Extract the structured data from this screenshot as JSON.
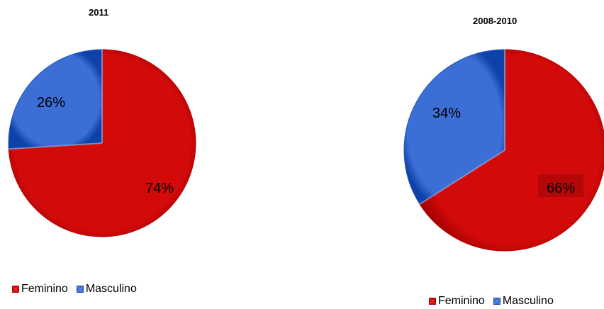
{
  "chart_data": [
    {
      "type": "pie",
      "title": "2011",
      "categories": [
        "Feminino",
        "Masculino"
      ],
      "values": [
        74,
        26
      ],
      "value_labels": [
        "74%",
        "26%"
      ],
      "colors": [
        "#D20A0A",
        "#3C6FD6"
      ],
      "legend_position": "bottom-left"
    },
    {
      "type": "pie",
      "title": "2008-2010",
      "categories": [
        "Feminino",
        "Masculino"
      ],
      "values": [
        66,
        34
      ],
      "value_labels": [
        "66%",
        "34%"
      ],
      "colors": [
        "#D20A0A",
        "#3C6FD6"
      ],
      "legend_position": "bottom"
    }
  ]
}
